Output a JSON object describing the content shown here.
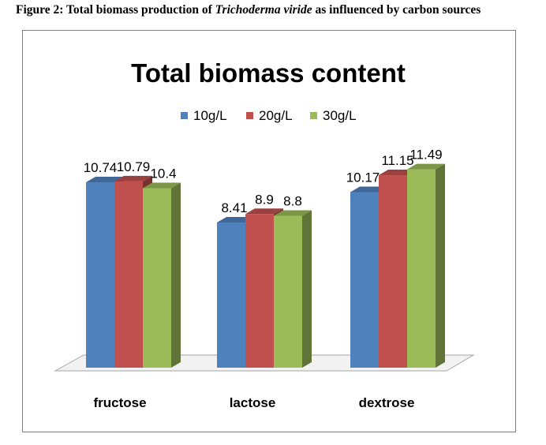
{
  "caption": {
    "prefix": "Figure 2: Total biomass production of ",
    "italic": "Trichoderma viride",
    "suffix": " as influenced by carbon sources"
  },
  "chart_data": {
    "type": "bar",
    "title": "Total biomass content",
    "categories": [
      "fructose",
      "lactose",
      "dextrose"
    ],
    "series": [
      {
        "name": "10g/L",
        "values": [
          10.74,
          8.41,
          10.17
        ],
        "color": "#4F81BD"
      },
      {
        "name": "20g/L",
        "values": [
          10.79,
          8.9,
          11.15
        ],
        "color": "#C0504D"
      },
      {
        "name": "30g/L",
        "values": [
          10.4,
          8.8,
          11.49
        ],
        "color": "#9BBB59"
      }
    ],
    "xlabel": "",
    "ylabel": "",
    "ylim": [
      0,
      12
    ],
    "grid": false,
    "legend": "top",
    "style": "3d-clustered-column"
  }
}
